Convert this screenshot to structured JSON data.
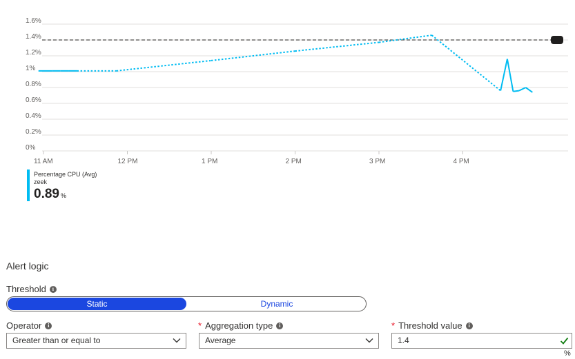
{
  "chart_data": {
    "type": "line",
    "y_ticks": [
      "1.6%",
      "1.4%",
      "1.2%",
      "1%",
      "0.8%",
      "0.6%",
      "0.4%",
      "0.2%",
      "0%"
    ],
    "x_ticks": [
      "11 AM",
      "12 PM",
      "1 PM",
      "2 PM",
      "3 PM",
      "4 PM"
    ],
    "ylim": [
      0,
      1.6
    ],
    "x_hours_range": [
      10.94,
      16.8
    ],
    "threshold": 1.4,
    "series": [
      {
        "name": "Percentage CPU (Avg)",
        "color": "#00bcf2",
        "points": [
          {
            "t": 10.94,
            "v": 1.01,
            "seg": "solid"
          },
          {
            "t": 11.1,
            "v": 1.01,
            "seg": "solid"
          },
          {
            "t": 11.2,
            "v": 1.01,
            "seg": "solid"
          },
          {
            "t": 11.3,
            "v": 1.01,
            "seg": "solid"
          },
          {
            "t": 11.4,
            "v": 1.01,
            "seg": "solid"
          },
          {
            "t": 11.87,
            "v": 1.01,
            "seg": "dotted"
          },
          {
            "t": 13.0,
            "v": 1.14,
            "seg": "dotted"
          },
          {
            "t": 14.0,
            "v": 1.26,
            "seg": "dotted"
          },
          {
            "t": 15.0,
            "v": 1.37,
            "seg": "dotted"
          },
          {
            "t": 15.63,
            "v": 1.46,
            "seg": "dotted"
          },
          {
            "t": 16.45,
            "v": 0.76,
            "seg": "dotted"
          },
          {
            "t": 16.53,
            "v": 1.16,
            "seg": "solid"
          },
          {
            "t": 16.6,
            "v": 0.75,
            "seg": "solid"
          },
          {
            "t": 16.67,
            "v": 0.76,
            "seg": "solid"
          },
          {
            "t": 16.75,
            "v": 0.8,
            "seg": "solid"
          },
          {
            "t": 16.83,
            "v": 0.74,
            "seg": "solid"
          }
        ]
      }
    ]
  },
  "legend": {
    "series_label": "Percentage CPU (Avg)",
    "resource": "zeek",
    "value": "0.89",
    "unit": "%",
    "color": "#00bcf2"
  },
  "alert_logic": {
    "title": "Alert logic",
    "threshold_label": "Threshold",
    "threshold_options": [
      "Static",
      "Dynamic"
    ],
    "threshold_selected": "Static",
    "operator_label": "Operator",
    "operator_value": "Greater than or equal to",
    "aggregation_label": "Aggregation type",
    "aggregation_value": "Average",
    "threshold_value_label": "Threshold value",
    "threshold_value": "1.4",
    "threshold_unit": "%",
    "required_mark": "*",
    "accent": "#1b47e0",
    "valid_color": "#107c10"
  }
}
